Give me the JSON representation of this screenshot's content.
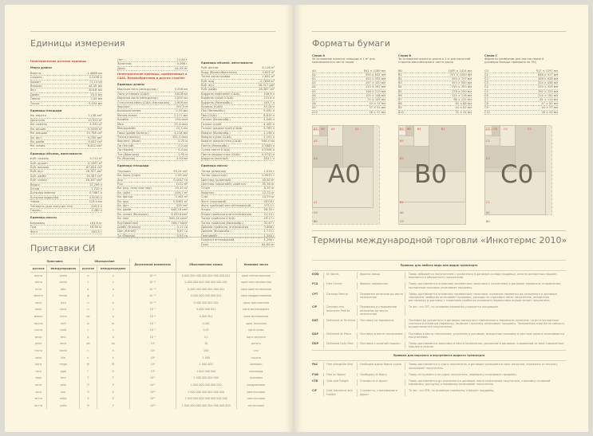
{
  "left": {
    "units_title": "Единицы измерения",
    "si_title": "Приставки СИ",
    "col1": [
      {
        "red": "Неметрические русские единицы"
      },
      {
        "sub": "Меры длины"
      },
      [
        "Верста",
        "1,0668 км"
      ],
      [
        "Сажень",
        "2,1336 м"
      ],
      [
        "Аршин",
        "71,12 см"
      ],
      [
        "Вершок",
        "44,45 мм"
      ],
      [
        "Фут",
        "304,8 мм"
      ],
      [
        "Дюйм",
        "25,4 мм"
      ],
      [
        "Линия",
        "2,54 мм"
      ],
      [
        "Точка",
        "0,254 мм"
      ],
      {
        "sub": "Единицы площади"
      },
      [
        "Кв. верста",
        "1,138 км²"
      ],
      [
        "Десятина",
        "10 925 м²"
      ],
      [
        "Кв. сажень",
        "4,552 м²"
      ],
      [
        "Кв. аршин",
        "0,5058 м²"
      ],
      [
        "Кв. вершок",
        "19,758 см²"
      ],
      [
        "Кв. фут",
        "9,290 дм²"
      ],
      [
        "Кв. дюйм",
        "6,452 см²"
      ],
      [
        "Кв. линия",
        "6,452 мм²"
      ],
      {
        "sub": "Единицы объема, вместимости"
      },
      [
        "Куб. сажень",
        "9,713 м³"
      ],
      [
        "Куб. аршин",
        "0,3597 м³"
      ],
      [
        "Куб. вершок",
        "87,824 см³"
      ],
      [
        "Куб. фут",
        "28,317 дм³"
      ],
      [
        "Куб. дюйм",
        "16,387 см³"
      ],
      [
        "Куб. линия",
        "16,387 мм³"
      ],
      [
        "Ведро",
        "12,299 л"
      ],
      [
        "Штоф",
        "1,230 л"
      ],
      [
        "Бутылка винная",
        "0,7687 л"
      ],
      [
        "Бутылка водочная",
        "0,6150 л"
      ],
      [
        "Чарка",
        "123,0 мл"
      ],
      [
        "Четверть (для сыпучих тел)",
        "209,9 л"
      ],
      [
        "Гарнец",
        "3,280 л"
      ],
      {
        "sub": "Единицы массы"
      },
      [
        "Берковец",
        "163,8 кг"
      ],
      [
        "Пуд",
        "16,38 кг"
      ],
      [
        "Фунт",
        "409,5 г"
      ]
    ],
    "col2": [
      [
        "Лот",
        "12,80 г"
      ],
      [
        "Золотник",
        "4,266 г"
      ],
      [
        "Доля",
        "44,43 мг"
      ],
      {
        "red": "Неметрические единицы, применяемые в США, Великобритании и других странах"
      },
      {
        "sub": "Единицы длины"
      },
      [
        "Морская лига (междунар.)",
        "5,556 км"
      ],
      [
        "Лига уставная (США)",
        "4,828 км"
      ],
      [
        "Морская миля (междунар.)",
        "1,852 км"
      ],
      [
        "Статутная миля (США, Австралия)",
        "1,609 км"
      ],
      [
        "Фарлонг",
        "201,2 м"
      ],
      [
        "Большая линия",
        "2,54 мм"
      ],
      [
        "Малая линия",
        "2,117 мм"
      ],
      [
        "Калибр",
        "254 мкм"
      ],
      [
        "Мил",
        "25,4 мкм"
      ],
      [
        "Микродюйм",
        "25,4 нм"
      ],
      [
        "Пика (дюйм полигр.)",
        "4,218 мм"
      ],
      [
        "Точка (полигр.)",
        "351,5 мкм"
      ],
      [
        "Фарлонг (Ирак)",
        "0,25 м"
      ],
      [
        "Ли (Китай)",
        "0,5 км"
      ],
      [
        "Ли (Корея)",
        "0,4 км"
      ],
      [
        "Туэ (Франция)",
        "1,95 м"
      ],
      [
        "Ри (Япония)",
        "3,93 км"
      ],
      {
        "sub": "Единицы площади"
      },
      [
        "Тауншип",
        "93,24 км²"
      ],
      [
        "Кв. миля (США)",
        "2,59 км²"
      ],
      [
        "Акр",
        "0,4047 га"
      ],
      [
        "Руд",
        "1012 м²"
      ],
      [
        "Кв. род, поль или перч",
        "25,29 м²"
      ],
      [
        "Кв. чейн",
        "404,7 м²"
      ],
      [
        "Кв. фатом",
        "3,345 м²"
      ],
      [
        "Кв. ярд",
        "0,8361 м²"
      ],
      [
        "Кв. фут",
        "929 см²"
      ],
      [
        "Кв. дюйм",
        "645,16 мм²"
      ],
      [
        "Кв. линия (большая)",
        "6,4516 мм²"
      ],
      [
        "Кв. мил",
        "645,16 мкм²"
      ],
      [
        "Круговой мил",
        "506,7 мкм²"
      ],
      [
        "Дзёбу (Япония)",
        "0,11 га"
      ],
      [
        "Цин (Китай)",
        "6,67 га"
      ],
      [
        "Ти (Япония)",
        "0,99 га"
      ]
    ],
    "col3": [
      {
        "sub": "Единицы объема, вместимости"
      },
      [
        "Куб. фатом",
        "6,116 м³"
      ],
      [
        "Корд (Великобритания)",
        "3,625 м³"
      ],
      [
        "Тонна регистровая",
        "2,832 м³"
      ],
      [
        "Куб. ярд",
        "0,7646 м³"
      ],
      [
        "Куб. фут",
        "28,317 дм³"
      ],
      [
        "Куб. дюйм",
        "16,387 см³"
      ],
      [
        "Баррель нефтяной (США)",
        "158,9 л"
      ],
      [
        "Баррель сухой (США)",
        "115,6 л"
      ],
      [
        "Баррель (Великобр.)",
        "163,7 л"
      ],
      [
        "Бушель (США)",
        "35,24 л"
      ],
      [
        "Пек (Великобр.)",
        "9,092 л"
      ],
      [
        "Пек (США)",
        "8,810 л"
      ],
      [
        "Галлон (Великобр.)",
        "4,546 л"
      ],
      [
        "Галлон сухой",
        "4,405 л"
      ],
      [
        "Галлон жидкостный (США)",
        "3,785 л"
      ],
      [
        "Кварта (Великобр.)",
        "1,136 л"
      ],
      [
        "Кварта сухая (США)",
        "1,101 л"
      ],
      [
        "Кварта жидкостная (США)",
        "946,4 мл"
      ],
      [
        "Пинта (Великобр.)",
        "0,5683 л"
      ],
      [
        "Сухая пинта (США)",
        "0,5506 л"
      ],
      [
        "Пинта жидкостная (США)",
        "0,4732 л"
      ],
      [
        "Баррель (винный)",
        "163,7 л"
      ],
      {
        "sub": "Единицы массы"
      },
      [
        "Тонна (длинная)",
        "1,016 т"
      ],
      [
        "Тонна (короткая)",
        "0,9072 т"
      ],
      [
        "Центнер (длинный)",
        "50,80 кг"
      ],
      [
        "Центнер (короткий), квинтал",
        "45,36 кг"
      ],
      [
        "Стоун",
        "6,35 кг"
      ],
      [
        "Квартер",
        "12,70 кг"
      ],
      [
        "Слаг",
        "14,59 кг"
      ],
      [
        "Фунт (торговый)",
        "453,6 г"
      ],
      [
        "Фунт тройский или аптекарский",
        "373,2 г"
      ],
      [
        "Унция",
        "28,35 г"
      ],
      [
        "Унция тройская или аптекарская",
        "31,10 г"
      ],
      [
        "Тонна тройская (США)",
        "29,17 г"
      ],
      [
        "Тонна тройская (Великобр.)",
        "32,67 г"
      ],
      [
        "Драхма тройская, аптекарская",
        "3,888 г"
      ],
      [
        "Драхма (Великобр.)",
        "1,772 г"
      ],
      [
        "Пеннивейт",
        "1,555 г"
      ],
      [
        "Скрупул аптекарский",
        "1,296 г"
      ],
      [
        "Гран",
        "64,80 мг"
      ]
    ],
    "si_headers": {
      "prefix": "Приставка",
      "ru": "русская",
      "intl": "международная",
      "symbol": "Обозначение",
      "ru2": "русское",
      "intl2": "международное",
      "mult": "Десятичный множитель",
      "notation": "Обыкновенная запись",
      "name": "Название числа"
    },
    "si_rows": [
      [
        "иокто",
        "yocto",
        "и",
        "y",
        "10⁻²⁴",
        "0,000 000 000 000 000 000 000 001",
        "одна септиллионная"
      ],
      [
        "зепто",
        "zepto",
        "з",
        "z",
        "10⁻²¹",
        "0,000 000 000 000 000 000 001",
        "одна секстиллионная"
      ],
      [
        "атто",
        "atto",
        "а",
        "a",
        "10⁻¹⁸",
        "0,000 000 000 000 000 001",
        "одна квинтиллионная"
      ],
      [
        "фемто",
        "femto",
        "ф",
        "f",
        "10⁻¹⁵",
        "0,000 000 000 000 001",
        "одна квадриллионная"
      ],
      [
        "пико",
        "pico",
        "п",
        "p",
        "10⁻¹²",
        "0,000 000 000 001",
        "одна триллионная"
      ],
      [
        "нано",
        "nano",
        "н",
        "n",
        "10⁻⁹",
        "0,000 000 001",
        "одна миллиардная"
      ],
      [
        "микро",
        "micro",
        "мк",
        "µ",
        "10⁻⁶",
        "0,000 001",
        "одна миллионная"
      ],
      [
        "милли",
        "milli",
        "м",
        "m",
        "10⁻³",
        "0,001",
        "одна тысячная"
      ],
      [
        "санти",
        "centi",
        "с",
        "c",
        "10⁻²",
        "0,01",
        "одна сотая"
      ],
      [
        "деци",
        "deci",
        "д",
        "d",
        "10⁻¹",
        "0,1",
        "одна десятая"
      ],
      [
        "дека",
        "deca",
        "да",
        "da",
        "10¹",
        "10",
        "десять"
      ],
      [
        "гекто",
        "hecto",
        "г",
        "h",
        "10²",
        "100",
        "сто"
      ],
      [
        "кило",
        "kilo",
        "к",
        "k",
        "10³",
        "1 000",
        "тысяча"
      ],
      [
        "мега",
        "mega",
        "М",
        "M",
        "10⁶",
        "1 000 000",
        "миллион"
      ],
      [
        "гига",
        "giga",
        "Г",
        "G",
        "10⁹",
        "1 000 000 000",
        "миллиард"
      ],
      [
        "тера",
        "tera",
        "Т",
        "T",
        "10¹²",
        "1 000 000 000 000",
        "триллион"
      ],
      [
        "пета",
        "peta",
        "П",
        "P",
        "10¹⁵",
        "1 000 000 000 000 000",
        "квадриллион"
      ],
      [
        "экса",
        "exa",
        "Э",
        "E",
        "10¹⁸",
        "1 000 000 000 000 000 000",
        "квинтиллион"
      ],
      [
        "зетта",
        "zetta",
        "З",
        "Z",
        "10²¹",
        "1 000 000 000 000 000 000 000",
        "секстиллион"
      ],
      [
        "иотта",
        "yotta",
        "И",
        "Y",
        "10²⁴",
        "1 000 000 000 000 000 000 000 000",
        "септиллион"
      ]
    ]
  },
  "right": {
    "paper_title": "Форматы бумаги",
    "series": [
      {
        "title": "Серия А",
        "desc": "За основание принята площадь в 1 м² для максимального листа серии",
        "rows": [
          [
            "A0",
            "841 × 1189 мм"
          ],
          [
            "A1",
            "594 × 841 мм"
          ],
          [
            "A2",
            "420 × 594 мм"
          ],
          [
            "A3",
            "297 × 420 мм"
          ],
          [
            "A4",
            "210 × 297 мм"
          ],
          [
            "A5",
            "148 × 210 мм"
          ],
          [
            "A6",
            "105 × 148 мм"
          ],
          [
            "A7",
            "74 × 105 мм"
          ],
          [
            "A8",
            "52 × 74 мм"
          ],
          [
            "A9",
            "37 × 52 мм"
          ],
          [
            "A10",
            "26 × 37 мм"
          ]
        ],
        "big": "A0",
        "labels": [
          "A7",
          "A6",
          "A4",
          "A2",
          "A5",
          "A3",
          "A1",
          "C0",
          "B0"
        ]
      },
      {
        "title": "Серия B",
        "desc": "За основание принята длина в 1 м для короткой стороны максимального листа серии",
        "rows": [
          [
            "B0",
            "1000 × 1414 мм"
          ],
          [
            "B1",
            "707 × 1000 мм"
          ],
          [
            "B2",
            "500 × 707 мм"
          ],
          [
            "B3",
            "353 × 500 мм"
          ],
          [
            "B4",
            "250 × 353 мм"
          ],
          [
            "B5",
            "176 × 250 мм"
          ],
          [
            "B6",
            "125 × 176 мм"
          ],
          [
            "B7",
            "88 × 125 мм"
          ],
          [
            "B8",
            "62 × 88 мм"
          ],
          [
            "B9",
            "44 × 62 мм"
          ],
          [
            "B10",
            "31 × 44 мм"
          ]
        ],
        "big": "B0",
        "labels": [
          "B7",
          "B6",
          "B4",
          "B2",
          "B5",
          "B3",
          "B1",
          "A0",
          "C0"
        ]
      },
      {
        "title": "Серия C",
        "desc": "Форматы конвертов для листов серии А (размеры больше примерно на 9%)",
        "rows": [
          [
            "C0",
            "917 × 1297 мм"
          ],
          [
            "C1",
            "648 × 917 мм"
          ],
          [
            "C2",
            "458 × 648 мм"
          ],
          [
            "C3",
            "324 × 458 мм"
          ],
          [
            "C4",
            "229 × 324 мм"
          ],
          [
            "C5",
            "162 × 229 мм"
          ],
          [
            "C6",
            "114 × 162 мм"
          ],
          [
            "C7",
            "81 × 114 мм"
          ],
          [
            "C8",
            "57 × 81 мм"
          ],
          [
            "C9",
            "40 × 57 мм"
          ],
          [
            "C10",
            "28 × 40 мм"
          ]
        ],
        "big": "C0",
        "labels": [
          "C7",
          "C6",
          "C4",
          "C2",
          "C5",
          "C3",
          "C1",
          "A0",
          "B0"
        ]
      }
    ],
    "inco_title": "Термины международной торговли «Инкотермс 2010»",
    "inco_groups": [
      {
        "title": "Правила для любого вида или видов транспорта",
        "rows": [
          [
            "EXW",
            "Ex Works",
            "Франко завод",
            "Товар забирается покупателем с указанного в договоре склада продавца, оплата экспортных пошлин вменяется в обязанность покупателю."
          ],
          [
            "FCA",
            "Free Carrier",
            "Франко перевозчик",
            "Товар доставляется основному перевозчику заказчика к указанному в договоре терминалу отправления, экспортные пошлины уплачивает продавец."
          ],
          [
            "CPT",
            "Carriage Paid to",
            "Перевозка оплачена до места назначения",
            "Товар доставляется основному перевозчику заказчика, основную перевозку до указанного в договоре терминала прибытия оплачивает продавец, расходы по страховке несет покупатель, импортную растаможку и доставку с терминала прибытия основного перевозчика осуществляет покупатель."
          ],
          [
            "CIP",
            "Carriage and Insurance Paid to",
            "Перевозка и страхование оплачены до места назначения",
            "То же, что CPT, но основная перевозка страхуется продавцом."
          ],
          [
            "DAT",
            "Delivered at Terminal",
            "Поставка на терминале",
            "Поставка до указанного в договоре импортного таможенного терминала оплачена, то есть экспортные платежи и основную перевозку, включая страховку оплачивает продавец. Таможенная очистка по импорту осуществляется покупателем."
          ],
          [
            "DAP",
            "Delivered at Place",
            "Поставка в месте назначения",
            "Поставка в место назначения, указанное в договоре, импортные пошлины и местные налоги оплачиваются покупателем."
          ],
          [
            "DDP",
            "Delivered Duty Paid",
            "Поставка с оплатой пошлин",
            "Товар доставляется заказчику в место назначения, указанное в договоре, очищенный от всех таможенных пошлин и рисков."
          ]
        ]
      },
      {
        "title": "Правила для морского и внутреннего водного транспорта",
        "rows": [
          [
            "FAS",
            "Free Alongside Ship",
            "Свободно вдоль борта судна",
            "Товар доставляется к судну покупателя, в договоре указывается порт погрузки, перевалку и погрузку оплачивает покупатель."
          ],
          [
            "FOB",
            "Free on Board",
            "Свободно на борту",
            "Товар отгружается на судно покупателя, перевалку оплачивает продавец."
          ],
          [
            "CFR",
            "Cost and Freight",
            "Стоимость и фрахт",
            "Товар доставляется до указанного в договоре порта назначения покупателя, страховку основной перевозки, разгрузку и перевалку оплачивает покупатель."
          ],
          [
            "CIF",
            "Cost Insurance and Freight",
            "Стоимость, страхование и фрахт",
            "То же, что CFR, но основную перевозку страхует продавец."
          ]
        ]
      }
    ]
  },
  "colors": {
    "page": "#fcf6e1",
    "accent_red": "#e0503e",
    "rule": "#efb8a4",
    "diagram": "#d8d2c0"
  }
}
